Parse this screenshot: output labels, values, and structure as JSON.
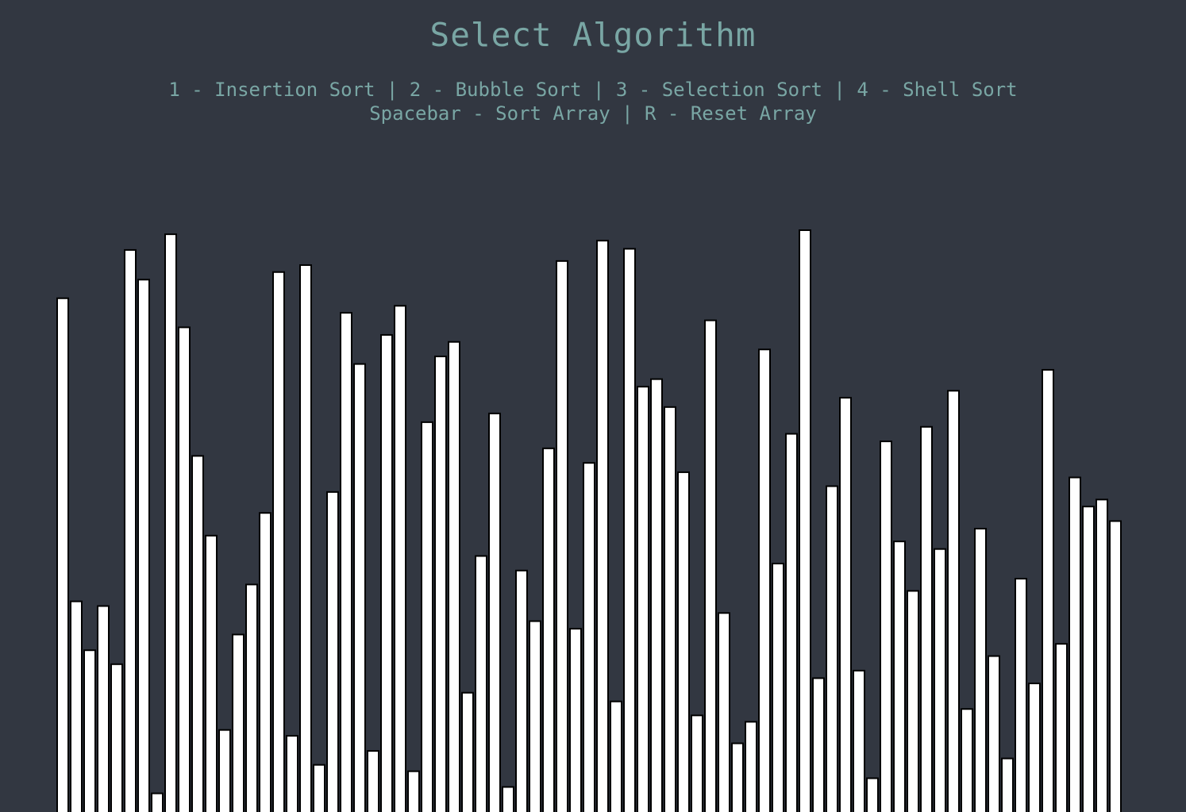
{
  "header": {
    "title": "Select Algorithm",
    "line1": "1 - Insertion Sort | 2 - Bubble Sort | 3 - Selection Sort | 4 - Shell Sort",
    "line2": "Spacebar - Sort Array | R - Reset Array"
  },
  "colors": {
    "background": "#323741",
    "text": "#79a6a4",
    "bar_fill": "#ffffff",
    "bar_stroke": "#000000"
  },
  "chart_data": {
    "type": "bar",
    "ylim": [
      0,
      1
    ],
    "grid": false,
    "values": [
      0.883,
      0.362,
      0.278,
      0.354,
      0.254,
      0.966,
      0.915,
      0.032,
      0.993,
      0.833,
      0.612,
      0.475,
      0.141,
      0.305,
      0.391,
      0.514,
      0.928,
      0.131,
      0.94,
      0.081,
      0.55,
      0.858,
      0.77,
      0.105,
      0.82,
      0.87,
      0.07,
      0.67,
      0.783,
      0.808,
      0.205,
      0.44,
      0.685,
      0.043,
      0.415,
      0.328,
      0.625,
      0.947,
      0.315,
      0.6,
      0.982,
      0.19,
      0.968,
      0.731,
      0.744,
      0.696,
      0.584,
      0.166,
      0.845,
      0.342,
      0.118,
      0.155,
      0.795,
      0.427,
      0.65,
      1.0,
      0.23,
      0.56,
      0.712,
      0.243,
      0.058,
      0.637,
      0.465,
      0.38,
      0.662,
      0.452,
      0.724,
      0.177,
      0.487,
      0.268,
      0.092,
      0.401,
      0.221,
      0.76,
      0.289,
      0.575,
      0.525,
      0.537,
      0.5
    ]
  }
}
